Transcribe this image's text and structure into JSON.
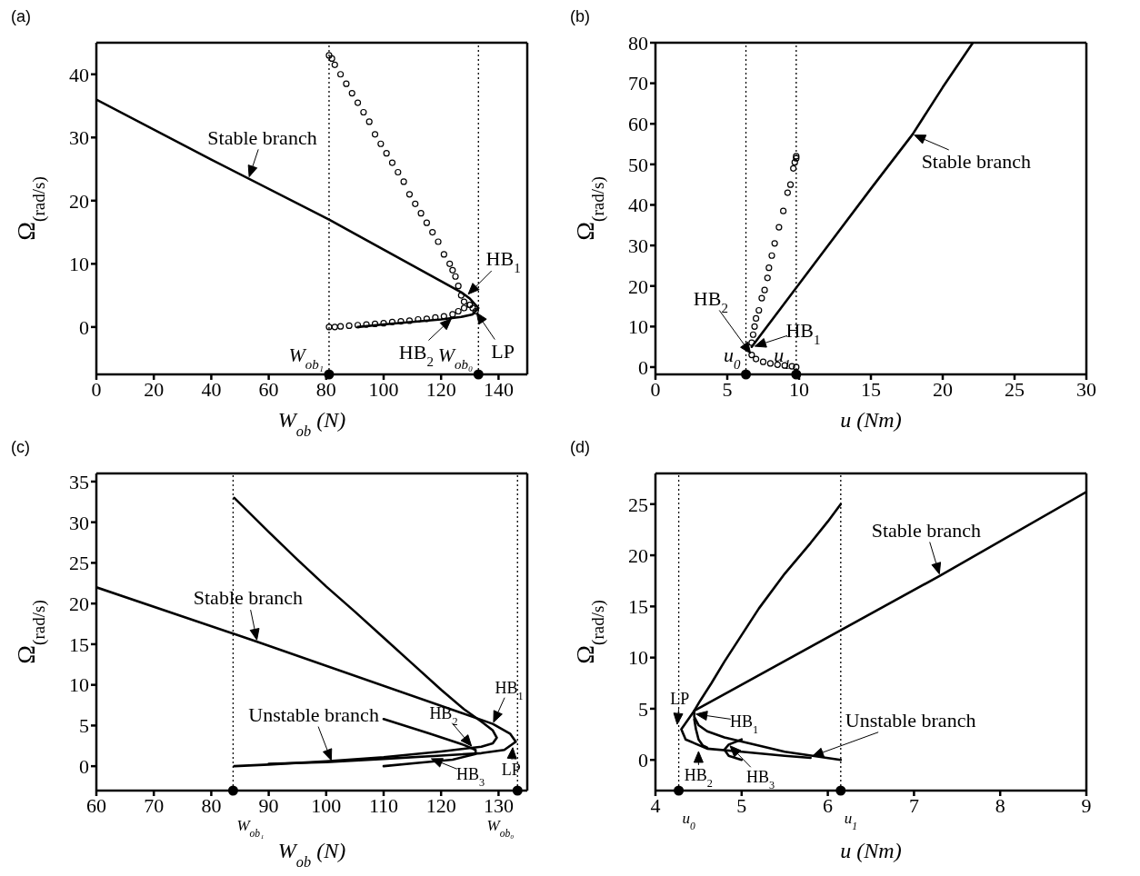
{
  "chart_data": [
    {
      "title": "(a)",
      "type": "line",
      "xlabel": "W$_{ob}$ (N)",
      "ylabel": "Ω$_{(rad/s)}$",
      "xlim": [
        0,
        150
      ],
      "xticks": [
        0,
        20,
        40,
        60,
        80,
        100,
        120,
        140
      ],
      "ylim": [
        -7.5,
        45
      ],
      "yticks": [
        0,
        10,
        20,
        30,
        40
      ],
      "series": [
        {
          "color": "#000000",
          "x": [
            0,
            40,
            81,
            127,
            130,
            133,
            131,
            127,
            120,
            110,
            100,
            91
          ],
          "values": [
            36,
            26.5,
            17,
            5.5,
            4.5,
            3,
            2,
            1.6,
            1.2,
            0.8,
            0.4,
            0
          ]
        },
        {
          "type": "scatter",
          "marker": "circle",
          "color": "#000000",
          "x": [
            81,
            82,
            83,
            85,
            87,
            89,
            91,
            93,
            95,
            97,
            99,
            101,
            103,
            105,
            107,
            109,
            111,
            113,
            115,
            117,
            119,
            121,
            123,
            124,
            125,
            126,
            127,
            128,
            130,
            131,
            132,
            81,
            83,
            85,
            88,
            91,
            94,
            97,
            100,
            103,
            106,
            109,
            112,
            115,
            118,
            121,
            124,
            126,
            128,
            130
          ],
          "values": [
            43,
            42.5,
            41.5,
            40,
            38.5,
            37,
            35.5,
            34,
            32.5,
            30.5,
            29,
            27.5,
            26,
            24.5,
            23,
            21,
            19.5,
            18,
            16.5,
            15,
            13.5,
            11.5,
            10,
            9,
            8,
            6.5,
            5,
            4,
            3.5,
            3,
            2.5,
            0,
            0,
            0.1,
            0.2,
            0.3,
            0.4,
            0.5,
            0.6,
            0.8,
            0.9,
            1,
            1.2,
            1.3,
            1.5,
            1.7,
            2,
            2.5,
            3,
            3.5
          ]
        }
      ],
      "ref_lines": [
        {
          "axis": "x",
          "value": 81,
          "label": "W$_{ob₁}$",
          "line_style": "dotted"
        },
        {
          "axis": "x",
          "value": 133,
          "label": "W$_{ob₀}$",
          "line_style": "dotted"
        }
      ],
      "annotations": [
        {
          "text": "Stable branch",
          "x": 53,
          "y": 23.5
        },
        {
          "text": "HB$_{1}$",
          "x": 129,
          "y": 5
        },
        {
          "text": "HB$_{2}$",
          "x": 124,
          "y": 1.5
        },
        {
          "text": "LP",
          "x": 132,
          "y": 2.5
        }
      ]
    },
    {
      "title": "(b)",
      "type": "line",
      "xlabel": "u (Nm)",
      "ylabel": "Ω$_{(rad/s)}$",
      "xlim": [
        0,
        30
      ],
      "xticks": [
        0,
        5,
        10,
        15,
        20,
        25,
        30
      ],
      "ylim": [
        -1.8,
        80
      ],
      "yticks": [
        0,
        10,
        20,
        30,
        40,
        50,
        60,
        70,
        80
      ],
      "series": [
        {
          "color": "#000000",
          "x": [
            6.7,
            10,
            15,
            17.9,
            20,
            22.1
          ],
          "values": [
            5,
            20.5,
            44,
            57.4,
            69,
            80
          ]
        },
        {
          "type": "scatter",
          "marker": "circle",
          "color": "#000000",
          "x": [
            6.7,
            6.8,
            6.9,
            7,
            7.2,
            7.4,
            7.6,
            7.8,
            7.9,
            8.1,
            8.3,
            8.6,
            8.9,
            9.2,
            9.4,
            9.6,
            9.7,
            9.8,
            9.8,
            6.7,
            7,
            7.5,
            8,
            8.5,
            9,
            9.5,
            9.8
          ],
          "values": [
            6,
            8,
            10,
            12,
            14,
            17,
            19,
            22,
            24.5,
            27.5,
            30.5,
            34.5,
            38.5,
            43,
            45,
            49,
            50.5,
            51.5,
            52,
            3,
            2,
            1.3,
            0.9,
            0.6,
            0.4,
            0.2,
            0
          ]
        }
      ],
      "ref_lines": [
        {
          "axis": "x",
          "value": 6.3,
          "label": "u$_{0}$",
          "line_style": "dotted"
        },
        {
          "axis": "x",
          "value": 9.8,
          "label": "u$_{1}$",
          "line_style": "dotted"
        }
      ],
      "annotations": [
        {
          "text": "Stable branch",
          "x": 17.9,
          "y": 57.4
        },
        {
          "text": "HB$_{2}$",
          "x": 6.7,
          "y": 3
        },
        {
          "text": "HB$_{1}$",
          "x": 6.8,
          "y": 5
        }
      ]
    },
    {
      "title": "(c)",
      "type": "line",
      "xlabel": "W$_{ob}$ (N)",
      "ylabel": "Ω$_{(rad/s)}$",
      "xlim": [
        60,
        135
      ],
      "xticks": [
        60,
        70,
        80,
        90,
        100,
        110,
        120,
        130
      ],
      "ylim": [
        -3,
        36
      ],
      "yticks": [
        0,
        5,
        10,
        15,
        20,
        25,
        30,
        35
      ],
      "series": [
        {
          "color": "#000000",
          "x": [
            60,
            88,
            129,
            132,
            133,
            131,
            127,
            120,
            110,
            100,
            90
          ],
          "values": [
            22,
            15.3,
            5.2,
            4,
            3,
            2,
            1.6,
            1.3,
            0.9,
            0.5,
            0.3
          ]
        },
        {
          "color": "#000000",
          "x": [
            84,
            90,
            95,
            100,
            105,
            110,
            115,
            120,
            124,
            127,
            129,
            129.7,
            129,
            127,
            120,
            110,
            100,
            90,
            84
          ],
          "values": [
            33,
            28.8,
            25.4,
            22.1,
            19,
            15.8,
            12.6,
            9.4,
            7,
            5.5,
            4.4,
            3.5,
            2.8,
            2.4,
            1.8,
            1.1,
            0.6,
            0.2,
            0
          ]
        },
        {
          "color": "#000000",
          "x": [
            110,
            118,
            124,
            126,
            126,
            122,
            116,
            110
          ],
          "values": [
            5.8,
            4,
            2.6,
            2,
            1.5,
            0.8,
            0.4,
            0
          ]
        }
      ],
      "ref_lines": [
        {
          "axis": "x",
          "value": 83.8,
          "label": "W$_{ob₁}$",
          "line_style": "dotted"
        },
        {
          "axis": "x",
          "value": 133.3,
          "label": "W$_{ob₀}$",
          "line_style": "dotted"
        }
      ],
      "annotations": [
        {
          "text": "Stable branch",
          "x": 88,
          "y": 15.3
        },
        {
          "text": "Unstable branch",
          "x": 101,
          "y": 0.5
        },
        {
          "text": "HB$_{1}$",
          "x": 129,
          "y": 5.2
        },
        {
          "text": "HB$_{2}$",
          "x": 125.5,
          "y": 2.3
        },
        {
          "text": "HB$_{3}$",
          "x": 118,
          "y": 1
        },
        {
          "text": "LP",
          "x": 132.5,
          "y": 2.5
        }
      ]
    },
    {
      "title": "(d)",
      "type": "line",
      "xlabel": "u (Nm)",
      "ylabel": "Ω$_{(rad/s)}$",
      "xlim": [
        4,
        9
      ],
      "xticks": [
        4,
        5,
        6,
        7,
        8,
        9
      ],
      "ylim": [
        -3,
        28
      ],
      "yticks": [
        0,
        5,
        10,
        15,
        20,
        25
      ],
      "series": [
        {
          "color": "#000000",
          "x": [
            9,
            7.3,
            4.45,
            4.3,
            4.35,
            4.6,
            5,
            5.5,
            5.8
          ],
          "values": [
            26.2,
            18,
            4.8,
            3,
            2,
            1.1,
            0.8,
            0.4,
            0.2
          ]
        },
        {
          "color": "#000000",
          "x": [
            6.15,
            6,
            5.8,
            5.5,
            5.2,
            5,
            4.8,
            4.65,
            4.52,
            4.45,
            4.45,
            4.5,
            4.6,
            4.8,
            5,
            5.5,
            6.15
          ],
          "values": [
            25,
            23.3,
            21.2,
            18.2,
            14.8,
            12.2,
            9.6,
            7.5,
            5.8,
            4.8,
            4.2,
            3.4,
            2.8,
            2.2,
            1.8,
            0.8,
            0
          ]
        },
        {
          "color": "#000000",
          "x": [
            4.45,
            4.47,
            4.5,
            4.55,
            4.6
          ],
          "values": [
            4,
            3,
            2,
            1.4,
            1.2
          ]
        },
        {
          "color": "#000000",
          "x": [
            5,
            4.85,
            4.8,
            4.85,
            5
          ],
          "values": [
            2,
            1.5,
            1,
            0.4,
            0
          ]
        }
      ],
      "ref_lines": [
        {
          "axis": "x",
          "value": 4.27,
          "label": "u$_{0}$",
          "line_style": "dotted"
        },
        {
          "axis": "x",
          "value": 6.15,
          "label": "u$_{1}$",
          "line_style": "dotted"
        }
      ],
      "annotations": [
        {
          "text": "Stable branch",
          "x": 7.3,
          "y": 18
        },
        {
          "text": "Unstable branch",
          "x": 5.8,
          "y": 0.3
        },
        {
          "text": "LP",
          "x": 4.25,
          "y": 3.3
        },
        {
          "text": "HB$_{1}$",
          "x": 4.45,
          "y": 4.5
        },
        {
          "text": "HB$_{2}$",
          "x": 4.5,
          "y": 1
        },
        {
          "text": "HB$_{3}$",
          "x": 4.85,
          "y": 1.5
        }
      ]
    }
  ]
}
